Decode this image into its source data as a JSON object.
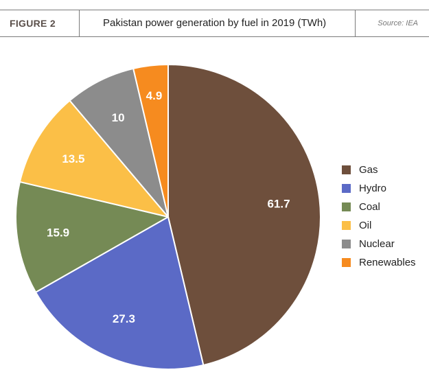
{
  "header": {
    "figure_label": "FIGURE 2",
    "title": "Pakistan power generation by fuel in 2019 (TWh)",
    "source": "Source: IEA"
  },
  "chart_data": {
    "type": "pie",
    "title": "Pakistan power generation by fuel in 2019 (TWh)",
    "start": "12 o'clock",
    "direction": "clockwise",
    "legend_position": "right",
    "slices": [
      {
        "label": "Gas",
        "value": 61.7,
        "value_label": "61.7",
        "color": "#6e4f3c"
      },
      {
        "label": "Hydro",
        "value": 27.3,
        "value_label": "27.3",
        "color": "#5b6ac6"
      },
      {
        "label": "Coal",
        "value": 15.9,
        "value_label": "15.9",
        "color": "#758a55"
      },
      {
        "label": "Oil",
        "value": 13.5,
        "value_label": "13.5",
        "color": "#fbbf47"
      },
      {
        "label": "Nuclear",
        "value": 10,
        "value_label": "10",
        "color": "#8c8c8c"
      },
      {
        "label": "Renewables",
        "value": 4.9,
        "value_label": "4.9",
        "color": "#f68b1f"
      }
    ]
  }
}
